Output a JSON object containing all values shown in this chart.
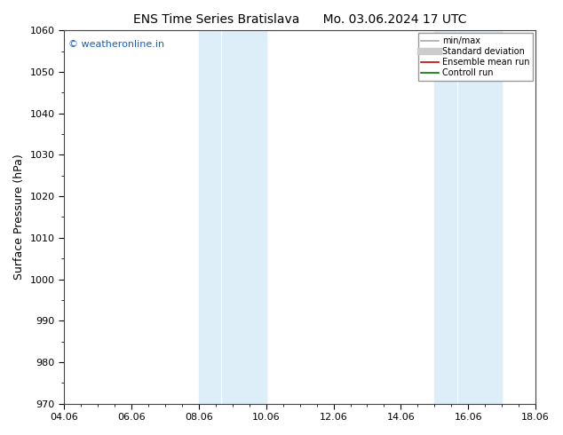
{
  "title_left": "ENS Time Series Bratislava",
  "title_right": "Mo. 03.06.2024 17 UTC",
  "ylabel": "Surface Pressure (hPa)",
  "ylim": [
    970,
    1060
  ],
  "yticks": [
    970,
    980,
    990,
    1000,
    1010,
    1020,
    1030,
    1040,
    1050,
    1060
  ],
  "xlim_num": [
    0,
    14
  ],
  "xtick_labels": [
    "04.06",
    "06.06",
    "08.06",
    "10.06",
    "12.06",
    "14.06",
    "16.06",
    "18.06"
  ],
  "xtick_positions": [
    0,
    2,
    4,
    6,
    8,
    10,
    12,
    14
  ],
  "shaded_bands": [
    {
      "xmin": 4.0,
      "xmax": 4.667,
      "color": "#deeef8"
    },
    {
      "xmin": 4.667,
      "xmax": 6.0,
      "color": "#deeef8"
    },
    {
      "xmin": 11.0,
      "xmax": 11.667,
      "color": "#deeef8"
    },
    {
      "xmin": 11.667,
      "xmax": 13.0,
      "color": "#deeef8"
    }
  ],
  "watermark": "© weatheronline.in",
  "watermark_color": "#1a5fb4",
  "legend_items": [
    {
      "label": "min/max",
      "color": "#aaaaaa",
      "lw": 1.2,
      "linestyle": "-"
    },
    {
      "label": "Standard deviation",
      "color": "#cccccc",
      "lw": 6,
      "linestyle": "-"
    },
    {
      "label": "Ensemble mean run",
      "color": "#cc0000",
      "lw": 1.2,
      "linestyle": "-"
    },
    {
      "label": "Controll run",
      "color": "#007700",
      "lw": 1.2,
      "linestyle": "-"
    }
  ],
  "bg_color": "#ffffff",
  "plot_bg_color": "#ffffff",
  "title_fontsize": 10,
  "axis_label_fontsize": 9,
  "tick_fontsize": 8,
  "watermark_fontsize": 8
}
